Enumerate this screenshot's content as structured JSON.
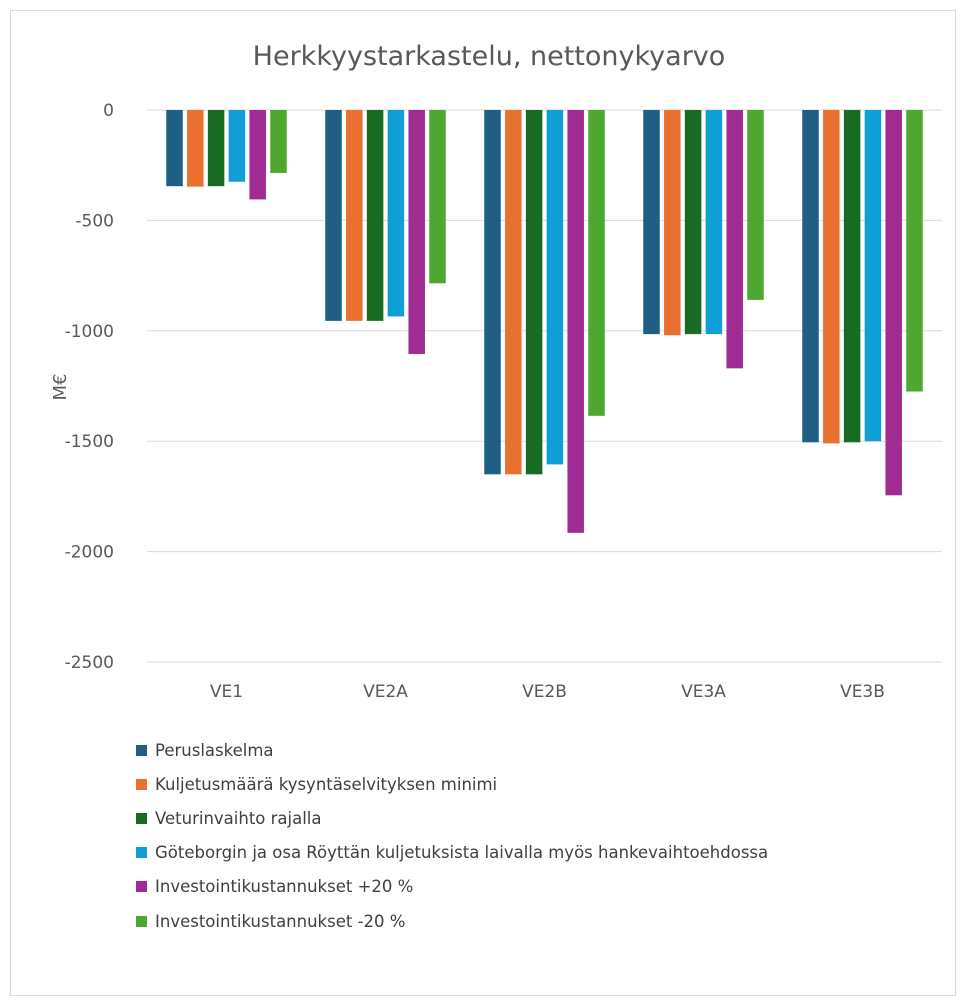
{
  "chart_data": {
    "type": "bar",
    "title": "Herkkyystarkastelu, nettonykyarvo",
    "xlabel": "",
    "ylabel": "M€",
    "ylim": [
      -2500,
      0
    ],
    "yticks": [
      0,
      -500,
      -1000,
      -1500,
      -2000,
      -2500
    ],
    "grid": true,
    "legend_position": "bottom",
    "categories": [
      "VE1",
      "VE2A",
      "VE2B",
      "VE3A",
      "VE3B"
    ],
    "series": [
      {
        "name": "Peruslaskelma",
        "color": "#1f5f84",
        "values": [
          -345,
          -955,
          -1650,
          -1015,
          -1505
        ]
      },
      {
        "name": "Kuljetusmäärä kysyntäselvityksen minimi",
        "color": "#ea7030",
        "values": [
          -347,
          -955,
          -1650,
          -1020,
          -1510
        ]
      },
      {
        "name": "Veturinvaihto rajalla",
        "color": "#196b24",
        "values": [
          -345,
          -955,
          -1650,
          -1015,
          -1505
        ]
      },
      {
        "name": "Göteborgin ja osa Röyttän kuljetuksista laivalla myös hankevaihtoehdossa",
        "color": "#0f9ed5",
        "values": [
          -325,
          -935,
          -1605,
          -1015,
          -1500
        ]
      },
      {
        "name": "Investointikustannukset +20 %",
        "color": "#a02b93",
        "values": [
          -405,
          -1105,
          -1915,
          -1170,
          -1745
        ]
      },
      {
        "name": "Investointikustannukset -20 %",
        "color": "#4ea72e",
        "values": [
          -285,
          -785,
          -1385,
          -860,
          -1275
        ]
      }
    ]
  }
}
